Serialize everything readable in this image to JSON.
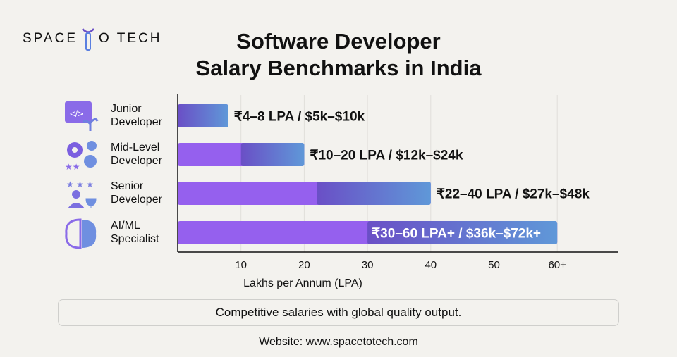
{
  "logo": {
    "text_left": "SPACE",
    "text_right": "O TECH",
    "brand_color": "#5a7fe0"
  },
  "title_line1": "Software Developer",
  "title_line2": "Salary Benchmarks in India",
  "chart_data": {
    "type": "bar",
    "orientation": "horizontal-range",
    "categories": [
      "Junior Developer",
      "Mid-Level Developer",
      "Senior Developer",
      "AI/ML Specialist"
    ],
    "category_lines": [
      [
        "Junior",
        "Developer"
      ],
      [
        "Mid-Level",
        "Developer"
      ],
      [
        "Senior",
        "Developer"
      ],
      [
        "AI/ML",
        "Specialist"
      ]
    ],
    "icons": [
      "code-window-plant-icon",
      "gears-head-icon",
      "stars-person-trophy-icon",
      "neural-brain-icon"
    ],
    "ranges_lpa": [
      [
        4,
        8
      ],
      [
        10,
        20
      ],
      [
        22,
        40
      ],
      [
        30,
        60
      ]
    ],
    "data_labels": [
      "₹4–8 LPA / $5k–$10k",
      "₹10–20 LPA / $12k–$24k",
      "₹22–40 LPA / $27k–$48k",
      "₹30–60 LPA+ / $36k–$72k+"
    ],
    "xlabel": "Lakhs per Annum (LPA)",
    "xticks": [
      10,
      20,
      30,
      40,
      50,
      60
    ],
    "xtick_labels": [
      "10",
      "20",
      "30",
      "40",
      "50",
      "60+"
    ],
    "xlim": [
      0,
      70
    ],
    "grid": "vertical",
    "colors": {
      "base": "#9560ee",
      "range_start": "#6a4fc6",
      "range_end": "#5f98d8"
    }
  },
  "note": "Competitive salaries with global quality output.",
  "website": "Website: www.spacetotech.com"
}
